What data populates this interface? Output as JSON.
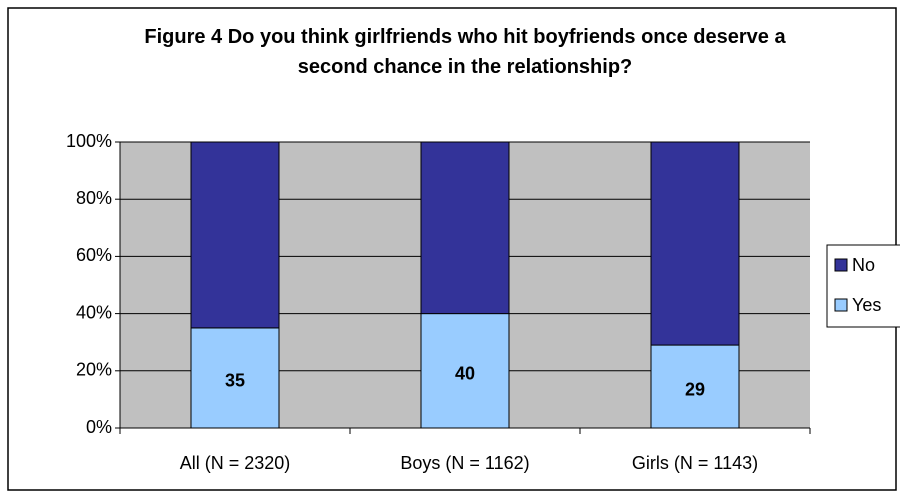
{
  "chart_data": {
    "type": "stacked_bar",
    "title": "Figure 4  Do you think girlfriends who hit boyfriends once deserve a second chance in the relationship?",
    "categories": [
      "All (N = 2320)",
      "Boys (N = 1162)",
      "Girls (N = 1143)"
    ],
    "series": [
      {
        "name": "Yes",
        "color": "#99ccff",
        "values": [
          35,
          40,
          29
        ]
      },
      {
        "name": "No",
        "color": "#333399",
        "values": [
          65,
          60,
          71
        ]
      }
    ],
    "ylim": [
      0,
      100
    ],
    "yticks": [
      {
        "value": 0,
        "label": "0%"
      },
      {
        "value": 20,
        "label": "20%"
      },
      {
        "value": 40,
        "label": "40%"
      },
      {
        "value": 60,
        "label": "60%"
      },
      {
        "value": 80,
        "label": "80%"
      },
      {
        "value": 100,
        "label": "100%"
      }
    ],
    "grid": true,
    "legend": "right"
  }
}
